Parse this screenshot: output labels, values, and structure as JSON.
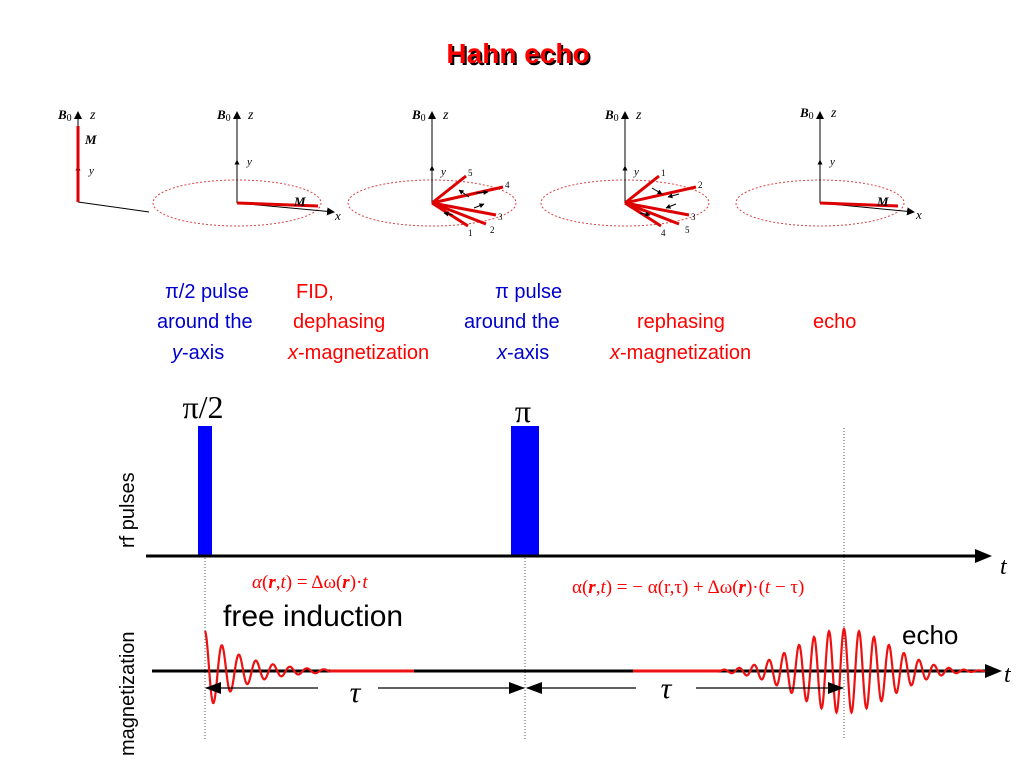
{
  "title": "Hahn echo",
  "vector_diagrams": {
    "b0_label": "B",
    "b0_subscript": "0",
    "z_label": "z",
    "y_label": "y",
    "x_label": "x",
    "m_label": "M",
    "panel3_spread_labels": [
      "5",
      "4",
      "3",
      "2",
      "1"
    ],
    "panel4_spread_labels": [
      "1",
      "2",
      "3",
      "4",
      "5"
    ]
  },
  "captions": {
    "c1": {
      "line1": "π/2 pulse",
      "line2": "around the",
      "line3_italic": "y",
      "line3_rest": "-axis"
    },
    "c2": {
      "line1": "FID,",
      "line2": "dephasing",
      "line3_italic": "x",
      "line3_rest": "-magnetization"
    },
    "c3": {
      "line1": "π pulse",
      "line2": "around the",
      "line3_italic": "x",
      "line3_rest": "-axis"
    },
    "c4": {
      "line2": "rephasing",
      "line3_italic": "x",
      "line3_rest": "-magnetization"
    },
    "c5": {
      "line2": "echo"
    }
  },
  "timing": {
    "pulse1_label": "π/2",
    "pulse2_label": "π",
    "rf_axis_label": "rf pulses",
    "mag_axis_label": "magnetization",
    "time_label": "t",
    "formula1": {
      "alpha": "α",
      "open": "(",
      "r": "r",
      "mid": ",",
      "t": "t",
      "rest": ") = Δω(",
      "r2": "r",
      "close": ")·",
      "t2": "t"
    },
    "formula2": {
      "text_a": "α(",
      "r": "r",
      "text_b": ",",
      "t": "t",
      "text_c": ") = − α(r,τ) + Δω(",
      "r2": "r",
      "text_d": ")·(",
      "t2": "t",
      "text_e": " − τ)"
    },
    "free_induction_label": "free induction",
    "echo_label": "echo",
    "tau1_label": "τ",
    "tau2_label": "τ"
  },
  "colors": {
    "title": "#ff0000",
    "blue_text": "#0000cc",
    "red_text": "#ff0000",
    "pulse": "#0000ff",
    "vector": "#dd0000",
    "signal": "#ee1111"
  }
}
